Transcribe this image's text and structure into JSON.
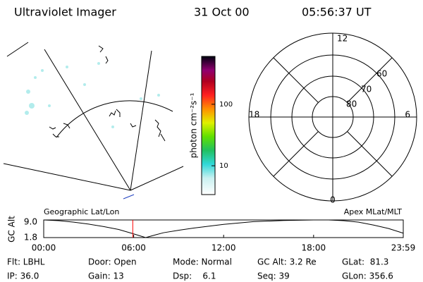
{
  "header": {
    "title": "Ultraviolet Imager",
    "date": "31 Oct 00",
    "time": "05:56:37 UT"
  },
  "colorbar": {
    "label": "photon cm⁻²s⁻¹",
    "log": true,
    "lim": [
      3.4,
      600
    ],
    "ticks": [
      10,
      100
    ]
  },
  "polar": {
    "mlt_labels": [
      "12",
      "18",
      "6",
      "0"
    ],
    "lat_labels": [
      "60",
      "70",
      "80"
    ]
  },
  "panel_labels": {
    "left": "Geographic Lat/Lon",
    "right": "Apex MLat/MLT"
  },
  "chart_data": {
    "type": "line",
    "ylabel": "GC Alt",
    "x": [
      0,
      1,
      2,
      3,
      4,
      5,
      6,
      6.8,
      7.5,
      8,
      9,
      10,
      12,
      14,
      16,
      18,
      19,
      20,
      21,
      22,
      23,
      23.98
    ],
    "series": [
      {
        "name": "GC Alt",
        "color": "#000000",
        "values": [
          9.0,
          8.7,
          8.1,
          7.3,
          6.3,
          5.1,
          3.3,
          1.8,
          3.0,
          3.8,
          4.8,
          5.7,
          7.2,
          8.3,
          8.8,
          9.0,
          9.0,
          8.7,
          8.1,
          6.9,
          5.5,
          3.6
        ]
      }
    ],
    "current_x": 5.94,
    "current_color": "#ff0000",
    "xlim": [
      0,
      23.98
    ],
    "ylim": [
      1.8,
      9.0
    ],
    "xticks": [
      {
        "value": 0,
        "label": "00:00"
      },
      {
        "value": 6,
        "label": "06:00"
      },
      {
        "value": 12,
        "label": "12:00"
      },
      {
        "value": 18,
        "label": "18:00"
      },
      {
        "value": 23.98,
        "label": "23:59"
      }
    ],
    "yticks": [
      {
        "value": 9.0,
        "label": "9.0"
      },
      {
        "value": 1.8,
        "label": "1.8"
      }
    ]
  },
  "info": [
    [
      "Flt: LBHL",
      "IP: 36.0"
    ],
    [
      "Door: Open",
      "Gain: 13"
    ],
    [
      "Mode: Normal",
      "Dsp:    6.1"
    ],
    [
      "GC Alt: 3.2 Re",
      "Seq: 39"
    ],
    [
      "GLat:  81.3",
      "GLon: 356.6"
    ]
  ]
}
